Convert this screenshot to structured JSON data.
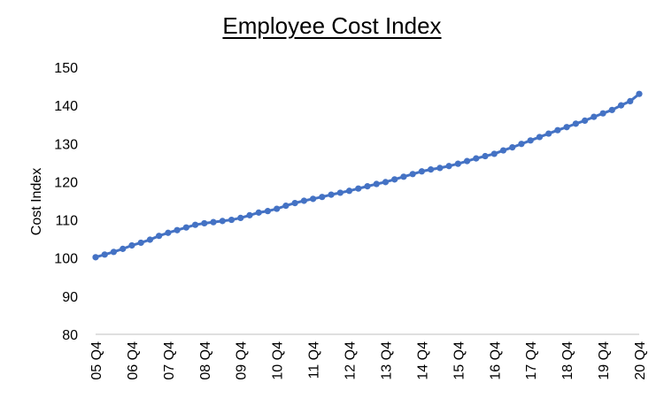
{
  "chart_data": {
    "type": "line",
    "title": "Employee Cost Index",
    "xlabel": "",
    "ylabel": "Cost Index",
    "ylim": [
      80,
      150
    ],
    "yticks": [
      80,
      90,
      100,
      110,
      120,
      130,
      140,
      150
    ],
    "grid": false,
    "legend": "none",
    "x": [
      "05 Q4",
      "06 Q1",
      "06 Q2",
      "06 Q3",
      "06 Q4",
      "07 Q1",
      "07 Q2",
      "07 Q3",
      "07 Q4",
      "08 Q1",
      "08 Q2",
      "08 Q3",
      "08 Q4",
      "09 Q1",
      "09 Q2",
      "09 Q3",
      "09 Q4",
      "10 Q1",
      "10 Q2",
      "10 Q3",
      "10 Q4",
      "11 Q1",
      "11 Q2",
      "11 Q3",
      "11 Q4",
      "12 Q1",
      "12 Q2",
      "12 Q3",
      "12 Q4",
      "13 Q1",
      "13 Q2",
      "13 Q3",
      "13 Q4",
      "14 Q1",
      "14 Q2",
      "14 Q3",
      "14 Q4",
      "15 Q1",
      "15 Q2",
      "15 Q3",
      "15 Q4",
      "16 Q1",
      "16 Q2",
      "16 Q3",
      "16 Q4",
      "17 Q1",
      "17 Q2",
      "17 Q3",
      "17 Q4",
      "18 Q1",
      "18 Q2",
      "18 Q3",
      "18 Q4",
      "19 Q1",
      "19 Q2",
      "19 Q3",
      "19 Q4",
      "20 Q1",
      "20 Q2",
      "20 Q3",
      "20 Q4"
    ],
    "xtick_labels": [
      "05 Q4",
      "06 Q4",
      "07 Q4",
      "08 Q4",
      "09 Q4",
      "10 Q4",
      "11 Q4",
      "12 Q4",
      "13 Q4",
      "14 Q4",
      "15 Q4",
      "16 Q4",
      "17 Q4",
      "18 Q4",
      "19 Q4",
      "20 Q4"
    ],
    "series": [
      {
        "color": "#4472C4",
        "values": [
          100.2,
          100.9,
          101.6,
          102.4,
          103.3,
          104.0,
          104.8,
          105.8,
          106.6,
          107.3,
          108.0,
          108.7,
          109.1,
          109.4,
          109.7,
          110.0,
          110.5,
          111.2,
          111.9,
          112.3,
          112.9,
          113.7,
          114.4,
          115.0,
          115.5,
          116.0,
          116.6,
          117.1,
          117.6,
          118.2,
          118.8,
          119.4,
          119.9,
          120.6,
          121.3,
          122.0,
          122.7,
          123.2,
          123.6,
          124.1,
          124.7,
          125.4,
          126.1,
          126.7,
          127.3,
          128.2,
          129.0,
          129.9,
          130.8,
          131.7,
          132.6,
          133.5,
          134.3,
          135.2,
          136.0,
          137.0,
          137.9,
          138.8,
          140.0,
          141.1,
          143.0
        ]
      }
    ]
  }
}
